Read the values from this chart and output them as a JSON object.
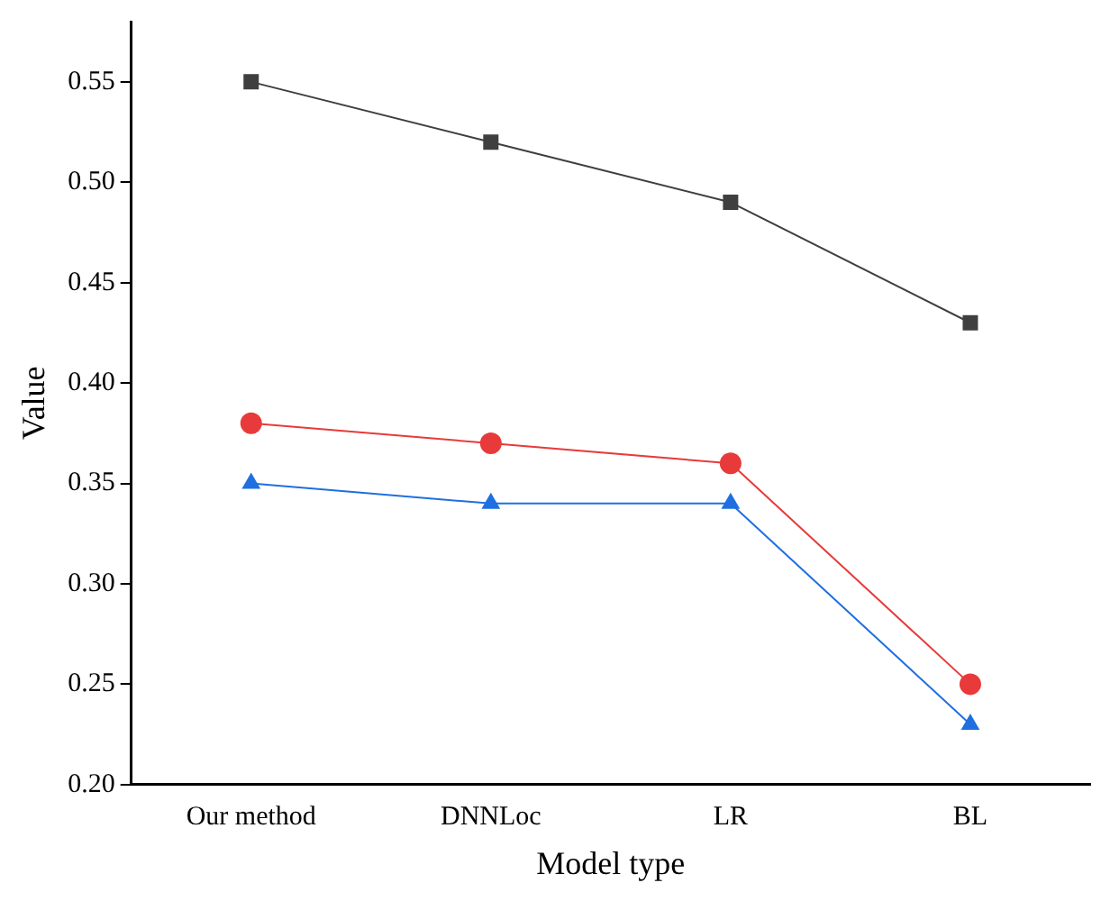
{
  "chart_data": {
    "type": "line",
    "xlabel": "Model type",
    "ylabel": "Value",
    "categories": [
      "Our method",
      "DNNLoc",
      "LR",
      "BL"
    ],
    "series": [
      {
        "color": "#3f3f3f",
        "marker": "square",
        "values": [
          0.55,
          0.52,
          0.49,
          0.43
        ]
      },
      {
        "color": "#e83a3a",
        "marker": "circle",
        "values": [
          0.38,
          0.37,
          0.36,
          0.25
        ]
      },
      {
        "color": "#1f6fe0",
        "marker": "triangle",
        "values": [
          0.35,
          0.34,
          0.34,
          0.23
        ]
      }
    ],
    "ylim": [
      0.2,
      0.58
    ],
    "yticks": [
      {
        "value": 0.2,
        "label": "0.20"
      },
      {
        "value": 0.25,
        "label": "0.25"
      },
      {
        "value": 0.3,
        "label": "0.30"
      },
      {
        "value": 0.35,
        "label": "0.35"
      },
      {
        "value": 0.4,
        "label": "0.40"
      },
      {
        "value": 0.45,
        "label": "0.45"
      },
      {
        "value": 0.5,
        "label": "0.50"
      },
      {
        "value": 0.55,
        "label": "0.55"
      }
    ],
    "grid": false,
    "legend": false
  }
}
